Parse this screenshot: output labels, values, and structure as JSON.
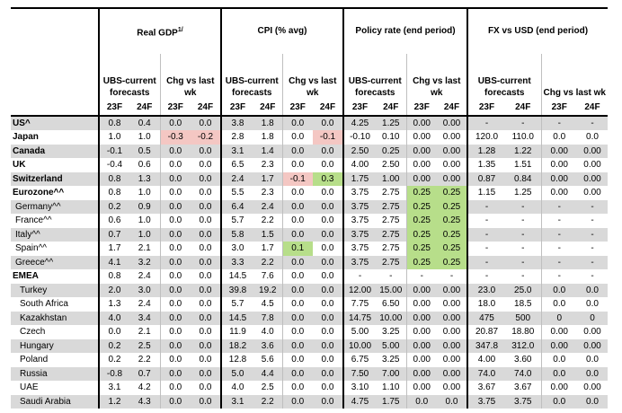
{
  "groups": [
    {
      "label": "Real GDP",
      "sup": "1/"
    },
    {
      "label": "CPI (% avg)"
    },
    {
      "label": "Policy rate (end period)"
    },
    {
      "label": "FX vs USD (end period)"
    }
  ],
  "sub": {
    "ubs1": "UBS-current",
    "ubs2": "forecasts",
    "chg1": "Chg vs last",
    "chg2": "wk",
    "chg_single": "Chg vs last wk"
  },
  "years": [
    "23F",
    "24F"
  ],
  "colors": {
    "gray": "#d9d9d9",
    "pink": "#f4c7c3",
    "green": "#b7de8a"
  },
  "rows": [
    {
      "name": "US^",
      "style": "bold",
      "gray": true,
      "v": [
        "0.8",
        "0.4",
        "0.0",
        "0.0",
        "3.8",
        "1.8",
        "0.0",
        "0.0",
        "4.25",
        "1.25",
        "0.00",
        "0.00",
        "-",
        "-",
        "-",
        "-"
      ]
    },
    {
      "name": "Japan",
      "style": "bold",
      "gray": false,
      "v": [
        "1.0",
        "1.0",
        "-0.3",
        "-0.2",
        "2.8",
        "1.8",
        "0.0",
        "-0.1",
        "-0.10",
        "0.10",
        "0.00",
        "0.00",
        "120.0",
        "110.0",
        "0.0",
        "0.0"
      ],
      "hl": {
        "2": "pink",
        "3": "pink",
        "7": "pink"
      }
    },
    {
      "name": "Canada",
      "style": "bold",
      "gray": true,
      "v": [
        "-0.1",
        "0.5",
        "0.0",
        "0.0",
        "3.1",
        "1.4",
        "0.0",
        "0.0",
        "2.50",
        "0.25",
        "0.00",
        "0.00",
        "1.28",
        "1.22",
        "0.00",
        "0.00"
      ]
    },
    {
      "name": "UK",
      "style": "bold",
      "gray": false,
      "v": [
        "-0.4",
        "0.6",
        "0.0",
        "0.0",
        "6.5",
        "2.3",
        "0.0",
        "0.0",
        "4.00",
        "2.50",
        "0.00",
        "0.00",
        "1.35",
        "1.51",
        "0.00",
        "0.00"
      ]
    },
    {
      "name": "Switzerland",
      "style": "bold",
      "gray": true,
      "v": [
        "0.8",
        "1.3",
        "0.0",
        "0.0",
        "2.4",
        "1.7",
        "-0.1",
        "0.3",
        "1.75",
        "1.00",
        "0.00",
        "0.00",
        "0.87",
        "0.84",
        "0.00",
        "0.00"
      ],
      "hl": {
        "6": "pink",
        "7": "green"
      }
    },
    {
      "name": "Eurozone^^",
      "style": "bold",
      "gray": false,
      "v": [
        "0.8",
        "1.0",
        "0.0",
        "0.0",
        "5.5",
        "2.3",
        "0.0",
        "0.0",
        "3.75",
        "2.75",
        "0.25",
        "0.25",
        "1.15",
        "1.25",
        "0.00",
        "0.00"
      ],
      "hl": {
        "10": "green",
        "11": "green"
      }
    },
    {
      "name": "Germany^^",
      "style": "indb",
      "gray": true,
      "v": [
        "0.2",
        "0.9",
        "0.0",
        "0.0",
        "6.4",
        "2.4",
        "0.0",
        "0.0",
        "3.75",
        "2.75",
        "0.25",
        "0.25",
        "-",
        "-",
        "-",
        "-"
      ],
      "hl": {
        "10": "green",
        "11": "green"
      }
    },
    {
      "name": "France^^",
      "style": "indb",
      "gray": false,
      "v": [
        "0.6",
        "1.0",
        "0.0",
        "0.0",
        "5.7",
        "2.2",
        "0.0",
        "0.0",
        "3.75",
        "2.75",
        "0.25",
        "0.25",
        "-",
        "-",
        "-",
        "-"
      ],
      "hl": {
        "10": "green",
        "11": "green"
      }
    },
    {
      "name": "Italy^^",
      "style": "indb",
      "gray": true,
      "v": [
        "0.7",
        "1.0",
        "0.0",
        "0.0",
        "5.8",
        "1.5",
        "0.0",
        "0.0",
        "3.75",
        "2.75",
        "0.25",
        "0.25",
        "-",
        "-",
        "-",
        "-"
      ],
      "hl": {
        "10": "green",
        "11": "green"
      }
    },
    {
      "name": "Spain^^",
      "style": "indb",
      "gray": false,
      "v": [
        "1.7",
        "2.1",
        "0.0",
        "0.0",
        "3.0",
        "1.7",
        "0.1",
        "0.0",
        "3.75",
        "2.75",
        "0.25",
        "0.25",
        "-",
        "-",
        "-",
        "-"
      ],
      "hl": {
        "6": "green",
        "10": "green",
        "11": "green"
      }
    },
    {
      "name": "Greece^^",
      "style": "indb",
      "gray": true,
      "v": [
        "4.1",
        "3.2",
        "0.0",
        "0.0",
        "3.3",
        "2.2",
        "0.0",
        "0.0",
        "3.75",
        "2.75",
        "0.25",
        "0.25",
        "-",
        "-",
        "-",
        "-"
      ],
      "hl": {
        "10": "green",
        "11": "green"
      }
    },
    {
      "name": "EMEA",
      "style": "bold",
      "gray": false,
      "v": [
        "0.8",
        "2.4",
        "0.0",
        "0.0",
        "14.5",
        "7.6",
        "0.0",
        "0.0",
        "-",
        "-",
        "-",
        "-",
        "-",
        "-",
        "-",
        "-"
      ]
    },
    {
      "name": "Turkey",
      "style": "ind",
      "gray": true,
      "v": [
        "2.0",
        "3.0",
        "0.0",
        "0.0",
        "39.8",
        "19.2",
        "0.0",
        "0.0",
        "12.00",
        "15.00",
        "0.00",
        "0.00",
        "23.0",
        "25.0",
        "0.0",
        "0.0"
      ]
    },
    {
      "name": "South Africa",
      "style": "ind",
      "gray": false,
      "v": [
        "1.3",
        "2.4",
        "0.0",
        "0.0",
        "5.7",
        "4.5",
        "0.0",
        "0.0",
        "7.75",
        "6.50",
        "0.00",
        "0.00",
        "18.0",
        "18.5",
        "0.0",
        "0.0"
      ]
    },
    {
      "name": "Kazakhstan",
      "style": "ind",
      "gray": true,
      "v": [
        "4.0",
        "3.4",
        "0.0",
        "0.0",
        "14.5",
        "7.8",
        "0.0",
        "0.0",
        "14.75",
        "10.00",
        "0.00",
        "0.00",
        "475",
        "500",
        "0",
        "0"
      ]
    },
    {
      "name": "Czech",
      "style": "ind",
      "gray": false,
      "v": [
        "0.0",
        "2.1",
        "0.0",
        "0.0",
        "11.9",
        "4.0",
        "0.0",
        "0.0",
        "5.00",
        "3.25",
        "0.00",
        "0.00",
        "20.87",
        "18.80",
        "0.00",
        "0.00"
      ]
    },
    {
      "name": "Hungary",
      "style": "ind",
      "gray": true,
      "v": [
        "0.2",
        "2.5",
        "0.0",
        "0.0",
        "18.2",
        "3.6",
        "0.0",
        "0.0",
        "10.00",
        "5.00",
        "0.00",
        "0.00",
        "347.8",
        "312.0",
        "0.00",
        "0.00"
      ]
    },
    {
      "name": "Poland",
      "style": "ind",
      "gray": false,
      "v": [
        "0.2",
        "2.2",
        "0.0",
        "0.0",
        "12.8",
        "5.6",
        "0.0",
        "0.0",
        "6.75",
        "3.25",
        "0.00",
        "0.00",
        "4.00",
        "3.60",
        "0.0",
        "0.0"
      ]
    },
    {
      "name": "Russia",
      "style": "ind",
      "gray": true,
      "v": [
        "-0.8",
        "0.7",
        "0.0",
        "0.0",
        "5.0",
        "4.4",
        "0.0",
        "0.0",
        "7.50",
        "7.00",
        "0.00",
        "0.00",
        "74.0",
        "74.0",
        "0.0",
        "0.0"
      ]
    },
    {
      "name": "UAE",
      "style": "ind",
      "gray": false,
      "v": [
        "3.1",
        "4.2",
        "0.0",
        "0.0",
        "4.0",
        "2.5",
        "0.0",
        "0.0",
        "3.10",
        "1.10",
        "0.00",
        "0.00",
        "3.67",
        "3.67",
        "0.00",
        "0.00"
      ]
    },
    {
      "name": "Saudi Arabia",
      "style": "ind",
      "gray": true,
      "v": [
        "1.2",
        "4.3",
        "0.0",
        "0.0",
        "3.1",
        "2.2",
        "0.0",
        "0.0",
        "4.75",
        "1.75",
        "0.0",
        "0.0",
        "3.75",
        "3.75",
        "0.0",
        "0.0"
      ]
    }
  ]
}
